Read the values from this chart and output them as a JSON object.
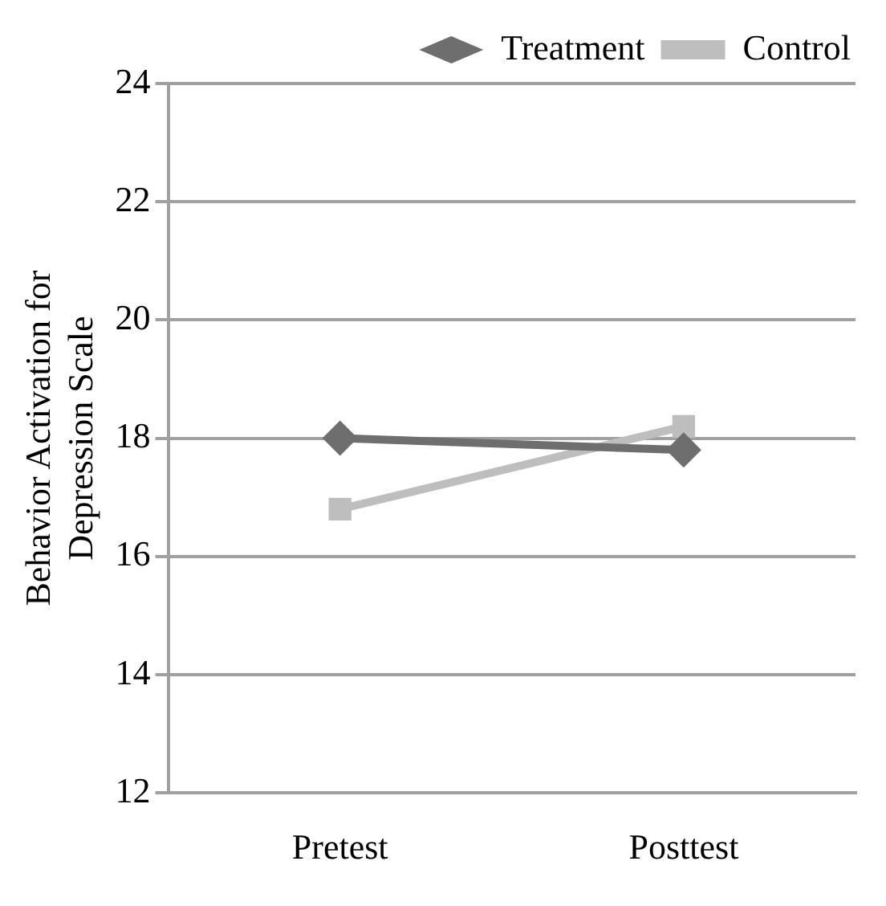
{
  "chart_data": {
    "type": "line",
    "ylabel": "Behavior Activation for\nDepression Scale",
    "categories": [
      "Pretest",
      "Posttest"
    ],
    "series": [
      {
        "name": "Treatment",
        "color": "#6e6e6e",
        "values": [
          18,
          17.8
        ],
        "marker": "diamond"
      },
      {
        "name": "Control",
        "color": "#bebebe",
        "values": [
          16.8,
          18.2
        ],
        "marker": "square"
      }
    ],
    "ylim": [
      12,
      24
    ],
    "yticks": [
      12,
      14,
      16,
      18,
      20,
      22,
      24
    ],
    "grid": "y",
    "legend": "top right"
  }
}
